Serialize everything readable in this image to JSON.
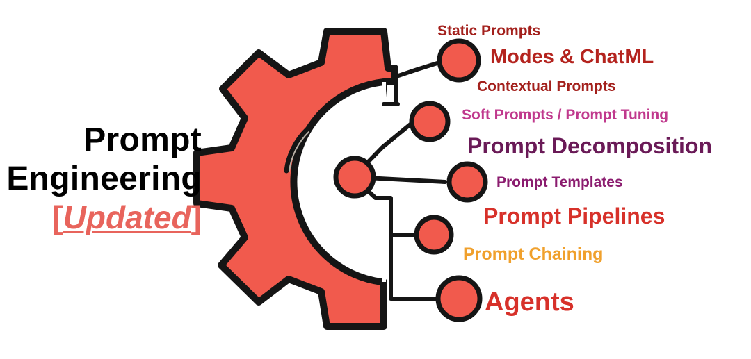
{
  "title": {
    "line1": "Prompt",
    "line2": "Engineering",
    "bracket_open": "[",
    "updated": "Updated",
    "bracket_close": "]"
  },
  "labels": [
    {
      "key": "static",
      "text": "Static Prompts",
      "color": "#a3201c"
    },
    {
      "key": "modes",
      "text": "Modes & ChatML",
      "color": "#b4231e"
    },
    {
      "key": "contextual",
      "text": "Contextual Prompts",
      "color": "#a3201c"
    },
    {
      "key": "soft",
      "text": "Soft Prompts / Prompt Tuning",
      "color": "#c0398d"
    },
    {
      "key": "decomposition",
      "text": "Prompt Decomposition",
      "color": "#6a1a57"
    },
    {
      "key": "templates",
      "text": "Prompt Templates",
      "color": "#8b1c6f"
    },
    {
      "key": "pipelines",
      "text": "Prompt Pipelines",
      "color": "#d7312a"
    },
    {
      "key": "chaining",
      "text": "Prompt Chaining",
      "color": "#f0a02c"
    },
    {
      "key": "agents",
      "text": "Agents",
      "color": "#d7312a"
    }
  ],
  "colors": {
    "gear": "#f15a4d",
    "outline": "#151515",
    "title_text": "#000000",
    "updated": "#e8645c"
  },
  "icons": {
    "gear": "gear-icon",
    "node": "circle-node"
  }
}
